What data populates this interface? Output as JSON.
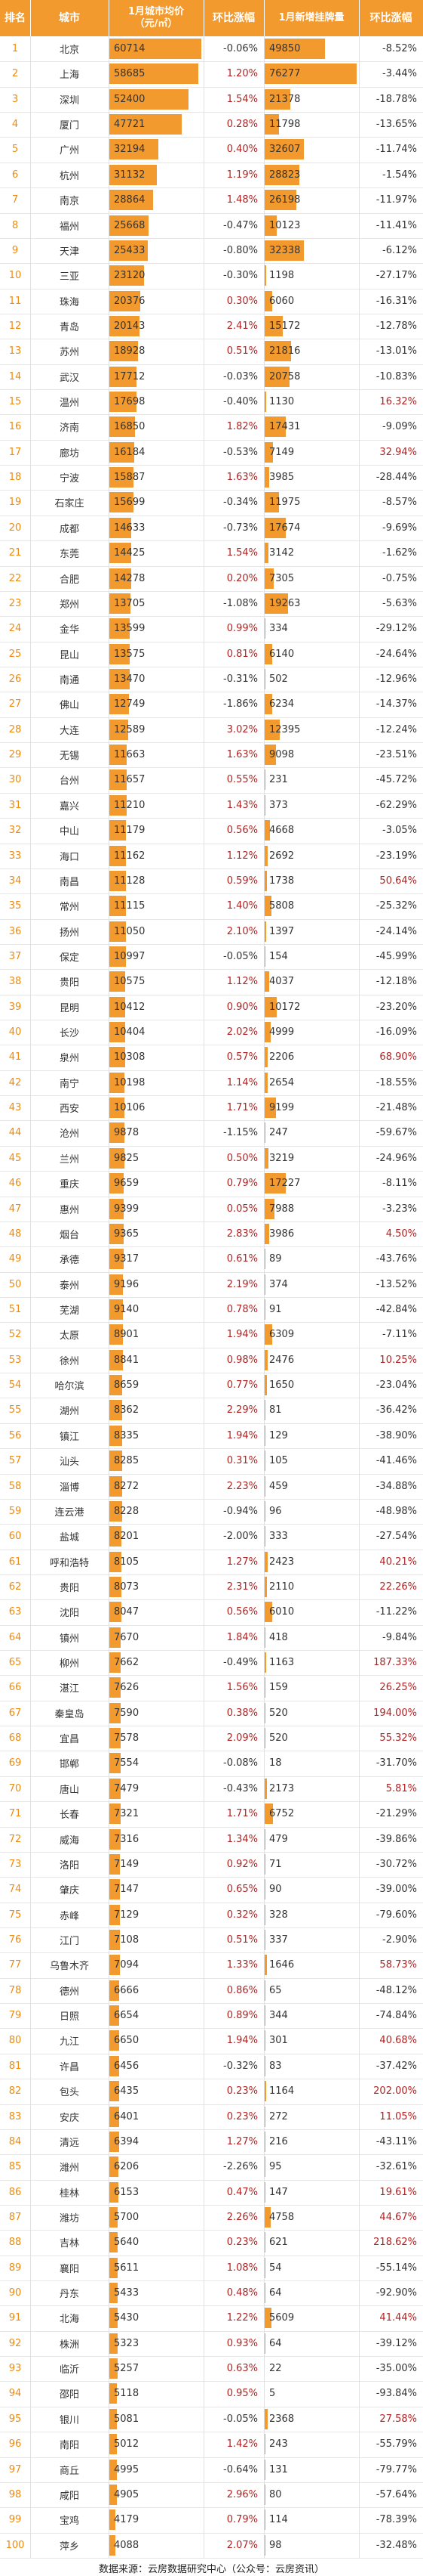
{
  "header": {
    "rank": "排名",
    "city": "城市",
    "price_line1": "1月城市均价",
    "price_line2": "（元/㎡）",
    "price_change": "环比涨幅",
    "listings": "1月新增挂牌量",
    "listings_change": "环比涨幅"
  },
  "colors": {
    "header_bg": "#f39a2e",
    "bar": "#f39a2e",
    "rank_text": "#f08a0e",
    "positive_change": "#b22222",
    "negative_change": "#333333"
  },
  "chart_data": {
    "type": "table",
    "columns": [
      "排名",
      "城市",
      "1月城市均价（元/㎡）",
      "环比涨幅",
      "1月新增挂牌量",
      "环比涨幅"
    ],
    "rows": [
      [
        "1",
        "北京",
        "60714",
        "-0.06%",
        "49850",
        "-8.52%"
      ],
      [
        "2",
        "上海",
        "58685",
        "1.20%",
        "76277",
        "-3.44%"
      ],
      [
        "3",
        "深圳",
        "52400",
        "1.54%",
        "21378",
        "-18.78%"
      ],
      [
        "4",
        "厦门",
        "47721",
        "0.28%",
        "11798",
        "-13.65%"
      ],
      [
        "5",
        "广州",
        "32194",
        "0.40%",
        "32607",
        "-11.74%"
      ],
      [
        "6",
        "杭州",
        "31132",
        "1.19%",
        "28823",
        "-1.54%"
      ],
      [
        "7",
        "南京",
        "28864",
        "1.48%",
        "26198",
        "-11.97%"
      ],
      [
        "8",
        "福州",
        "25668",
        "-0.47%",
        "10123",
        "-11.41%"
      ],
      [
        "9",
        "天津",
        "25433",
        "-0.80%",
        "32338",
        "-6.12%"
      ],
      [
        "10",
        "三亚",
        "23120",
        "-0.30%",
        "1198",
        "-27.17%"
      ],
      [
        "11",
        "珠海",
        "20376",
        "0.30%",
        "6060",
        "-16.31%"
      ],
      [
        "12",
        "青岛",
        "20143",
        "2.41%",
        "15172",
        "-12.78%"
      ],
      [
        "13",
        "苏州",
        "18928",
        "0.51%",
        "21816",
        "-13.01%"
      ],
      [
        "14",
        "武汉",
        "17712",
        "-0.03%",
        "20758",
        "-10.83%"
      ],
      [
        "15",
        "温州",
        "17698",
        "-0.40%",
        "1130",
        "16.32%"
      ],
      [
        "16",
        "济南",
        "16850",
        "1.82%",
        "17431",
        "-9.09%"
      ],
      [
        "17",
        "廊坊",
        "16184",
        "-0.53%",
        "7149",
        "32.94%"
      ],
      [
        "18",
        "宁波",
        "15887",
        "1.63%",
        "3985",
        "-28.44%"
      ],
      [
        "19",
        "石家庄",
        "15699",
        "-0.34%",
        "11975",
        "-8.57%"
      ],
      [
        "20",
        "成都",
        "14633",
        "-0.73%",
        "17674",
        "-9.69%"
      ],
      [
        "21",
        "东莞",
        "14425",
        "1.54%",
        "3142",
        "-1.62%"
      ],
      [
        "22",
        "合肥",
        "14278",
        "0.20%",
        "7305",
        "-0.75%"
      ],
      [
        "23",
        "郑州",
        "13705",
        "-1.08%",
        "19263",
        "-5.63%"
      ],
      [
        "24",
        "金华",
        "13599",
        "0.99%",
        "334",
        "-29.12%"
      ],
      [
        "25",
        "昆山",
        "13575",
        "0.81%",
        "6140",
        "-24.64%"
      ],
      [
        "26",
        "南通",
        "13470",
        "-0.31%",
        "502",
        "-12.96%"
      ],
      [
        "27",
        "佛山",
        "12749",
        "-1.86%",
        "6234",
        "-14.37%"
      ],
      [
        "28",
        "大连",
        "12589",
        "3.02%",
        "12395",
        "-12.24%"
      ],
      [
        "29",
        "无锡",
        "11663",
        "1.63%",
        "9098",
        "-23.51%"
      ],
      [
        "30",
        "台州",
        "11657",
        "0.55%",
        "231",
        "-45.72%"
      ],
      [
        "31",
        "嘉兴",
        "11210",
        "1.43%",
        "373",
        "-62.29%"
      ],
      [
        "32",
        "中山",
        "11179",
        "0.56%",
        "4668",
        "-3.05%"
      ],
      [
        "33",
        "海口",
        "11162",
        "1.12%",
        "2692",
        "-23.19%"
      ],
      [
        "34",
        "南昌",
        "11128",
        "0.59%",
        "1738",
        "50.64%"
      ],
      [
        "35",
        "常州",
        "11115",
        "1.40%",
        "5808",
        "-25.32%"
      ],
      [
        "36",
        "扬州",
        "11050",
        "2.10%",
        "1397",
        "-24.14%"
      ],
      [
        "37",
        "保定",
        "10997",
        "-0.05%",
        "154",
        "-45.99%"
      ],
      [
        "38",
        "贵阳",
        "10575",
        "1.12%",
        "4037",
        "-12.18%"
      ],
      [
        "39",
        "昆明",
        "10412",
        "0.90%",
        "10172",
        "-23.20%"
      ],
      [
        "40",
        "长沙",
        "10404",
        "2.02%",
        "4999",
        "-16.09%"
      ],
      [
        "41",
        "泉州",
        "10308",
        "0.57%",
        "2206",
        "68.90%"
      ],
      [
        "42",
        "南宁",
        "10198",
        "1.14%",
        "2654",
        "-18.55%"
      ],
      [
        "43",
        "西安",
        "10106",
        "1.71%",
        "9199",
        "-21.48%"
      ],
      [
        "44",
        "沧州",
        "9878",
        "-1.15%",
        "247",
        "-59.67%"
      ],
      [
        "45",
        "兰州",
        "9825",
        "0.50%",
        "3219",
        "-24.96%"
      ],
      [
        "46",
        "重庆",
        "9659",
        "0.79%",
        "17227",
        "-8.11%"
      ],
      [
        "47",
        "惠州",
        "9399",
        "0.05%",
        "7988",
        "-3.23%"
      ],
      [
        "48",
        "烟台",
        "9365",
        "2.83%",
        "3986",
        "4.50%"
      ],
      [
        "49",
        "承德",
        "9317",
        "0.61%",
        "89",
        "-43.76%"
      ],
      [
        "50",
        "泰州",
        "9196",
        "2.19%",
        "374",
        "-13.52%"
      ],
      [
        "51",
        "芜湖",
        "9140",
        "0.78%",
        "91",
        "-42.84%"
      ],
      [
        "52",
        "太原",
        "8901",
        "1.94%",
        "6309",
        "-7.11%"
      ],
      [
        "53",
        "徐州",
        "8841",
        "0.98%",
        "2476",
        "10.25%"
      ],
      [
        "54",
        "哈尔滨",
        "8659",
        "0.77%",
        "1650",
        "-23.04%"
      ],
      [
        "55",
        "湖州",
        "8362",
        "2.29%",
        "81",
        "-36.42%"
      ],
      [
        "56",
        "镇江",
        "8335",
        "1.94%",
        "129",
        "-38.90%"
      ],
      [
        "57",
        "汕头",
        "8285",
        "0.31%",
        "105",
        "-41.46%"
      ],
      [
        "58",
        "淄博",
        "8272",
        "2.23%",
        "459",
        "-34.88%"
      ],
      [
        "59",
        "连云港",
        "8228",
        "-0.94%",
        "96",
        "-48.98%"
      ],
      [
        "60",
        "盐城",
        "8201",
        "-2.00%",
        "333",
        "-27.54%"
      ],
      [
        "61",
        "呼和浩特",
        "8105",
        "1.27%",
        "2423",
        "40.21%"
      ],
      [
        "62",
        "贵阳",
        "8073",
        "2.31%",
        "2110",
        "22.26%"
      ],
      [
        "63",
        "沈阳",
        "8047",
        "0.56%",
        "6010",
        "-11.22%"
      ],
      [
        "64",
        "镇州",
        "7670",
        "1.84%",
        "418",
        "-9.84%"
      ],
      [
        "65",
        "柳州",
        "7662",
        "-0.49%",
        "1163",
        "187.33%"
      ],
      [
        "66",
        "湛江",
        "7626",
        "1.56%",
        "159",
        "26.25%"
      ],
      [
        "67",
        "秦皇岛",
        "7590",
        "0.38%",
        "520",
        "194.00%"
      ],
      [
        "68",
        "宜昌",
        "7578",
        "2.09%",
        "520",
        "55.32%"
      ],
      [
        "69",
        "邯郸",
        "7554",
        "-0.08%",
        "18",
        "-31.70%"
      ],
      [
        "70",
        "唐山",
        "7479",
        "-0.43%",
        "2173",
        "5.81%"
      ],
      [
        "71",
        "长春",
        "7321",
        "1.71%",
        "6752",
        "-21.29%"
      ],
      [
        "72",
        "威海",
        "7316",
        "1.34%",
        "479",
        "-39.86%"
      ],
      [
        "73",
        "洛阳",
        "7149",
        "0.92%",
        "71",
        "-30.72%"
      ],
      [
        "74",
        "肇庆",
        "7147",
        "0.65%",
        "90",
        "-39.00%"
      ],
      [
        "75",
        "赤峰",
        "7129",
        "0.32%",
        "328",
        "-79.60%"
      ],
      [
        "76",
        "江门",
        "7108",
        "0.51%",
        "337",
        "-2.90%"
      ],
      [
        "77",
        "乌鲁木齐",
        "7094",
        "1.33%",
        "1646",
        "58.73%"
      ],
      [
        "78",
        "德州",
        "6666",
        "0.86%",
        "65",
        "-48.12%"
      ],
      [
        "79",
        "日照",
        "6654",
        "0.89%",
        "344",
        "-74.84%"
      ],
      [
        "80",
        "九江",
        "6650",
        "1.94%",
        "301",
        "40.68%"
      ],
      [
        "81",
        "许昌",
        "6456",
        "-0.32%",
        "83",
        "-37.42%"
      ],
      [
        "82",
        "包头",
        "6435",
        "0.23%",
        "1164",
        "202.00%"
      ],
      [
        "83",
        "安庆",
        "6401",
        "0.23%",
        "272",
        "11.05%"
      ],
      [
        "84",
        "清远",
        "6394",
        "1.27%",
        "216",
        "-43.11%"
      ],
      [
        "85",
        "潍州",
        "6206",
        "-2.26%",
        "95",
        "-32.61%"
      ],
      [
        "86",
        "桂林",
        "6153",
        "0.47%",
        "147",
        "19.61%"
      ],
      [
        "87",
        "潍坊",
        "5700",
        "2.26%",
        "4758",
        "44.67%"
      ],
      [
        "88",
        "吉林",
        "5640",
        "0.23%",
        "621",
        "218.62%"
      ],
      [
        "89",
        "襄阳",
        "5611",
        "1.08%",
        "54",
        "-55.14%"
      ],
      [
        "90",
        "丹东",
        "5433",
        "0.48%",
        "64",
        "-92.90%"
      ],
      [
        "91",
        "北海",
        "5430",
        "1.22%",
        "5609",
        "41.44%"
      ],
      [
        "92",
        "株洲",
        "5323",
        "0.93%",
        "64",
        "-39.12%"
      ],
      [
        "93",
        "临沂",
        "5257",
        "0.63%",
        "22",
        "-35.00%"
      ],
      [
        "94",
        "邵阳",
        "5118",
        "0.95%",
        "5",
        "-93.84%"
      ],
      [
        "95",
        "银川",
        "5081",
        "-0.05%",
        "2368",
        "27.58%"
      ],
      [
        "96",
        "南阳",
        "5012",
        "1.42%",
        "243",
        "-55.79%"
      ],
      [
        "97",
        "商丘",
        "4995",
        "-0.64%",
        "131",
        "-79.77%"
      ],
      [
        "98",
        "咸阳",
        "4905",
        "2.96%",
        "80",
        "-57.64%"
      ],
      [
        "99",
        "宝鸡",
        "4179",
        "0.79%",
        "114",
        "-78.39%"
      ],
      [
        "100",
        "萍乡",
        "4088",
        "2.07%",
        "98",
        "-32.48%"
      ]
    ]
  },
  "footer": {
    "source": "数据来源：云房数据研究中心（公众号：云房资讯）"
  }
}
